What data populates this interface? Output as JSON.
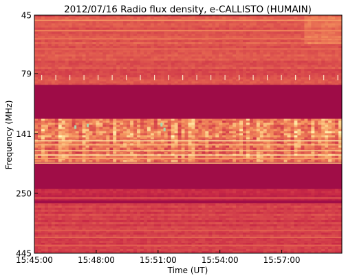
{
  "chart_data": {
    "type": "heatmap",
    "title": "2012/07/16  Radio flux density, e-CALLISTO (HUMAIN)",
    "xlabel": "Time (UT)",
    "ylabel": "Frequency (MHz)",
    "x_tick_labels": [
      "15:45:00",
      "15:48:00",
      "15:51:00",
      "15:54:00",
      "15:57:00"
    ],
    "y_tick_labels": [
      "45",
      "79",
      "141",
      "250",
      "445"
    ],
    "x_range": [
      "15:45:00",
      "15:59:55"
    ],
    "y_range_mhz": [
      445,
      45
    ],
    "y_scale": "log",
    "colormap": "spectral (dark red low, orange/yellow high, light blue peaks)",
    "colors": {
      "low": "#9b0a47",
      "mid": "#e46250",
      "high": "#fdd08a",
      "peak": "#a8d8b0"
    },
    "frequency_bands": [
      {
        "from_mhz": 45,
        "to_mhz": 75,
        "level": "moderate, horizontally striped"
      },
      {
        "from_mhz": 78,
        "to_mhz": 83,
        "level": "moderate with periodic pale spikes"
      },
      {
        "from_mhz": 88,
        "to_mhz": 122,
        "level": "low (masked / no signal)"
      },
      {
        "from_mhz": 125,
        "to_mhz": 145,
        "level": "high, bursty vertical structure"
      },
      {
        "from_mhz": 145,
        "to_mhz": 185,
        "level": "high, intermittent interference lines"
      },
      {
        "from_mhz": 188,
        "to_mhz": 240,
        "level": "low"
      },
      {
        "from_mhz": 240,
        "to_mhz": 270,
        "level": "moderate, striped"
      },
      {
        "from_mhz": 270,
        "to_mhz": 445,
        "level": "moderate, weak horizontal lines"
      }
    ],
    "grid": false,
    "legend": "none"
  }
}
